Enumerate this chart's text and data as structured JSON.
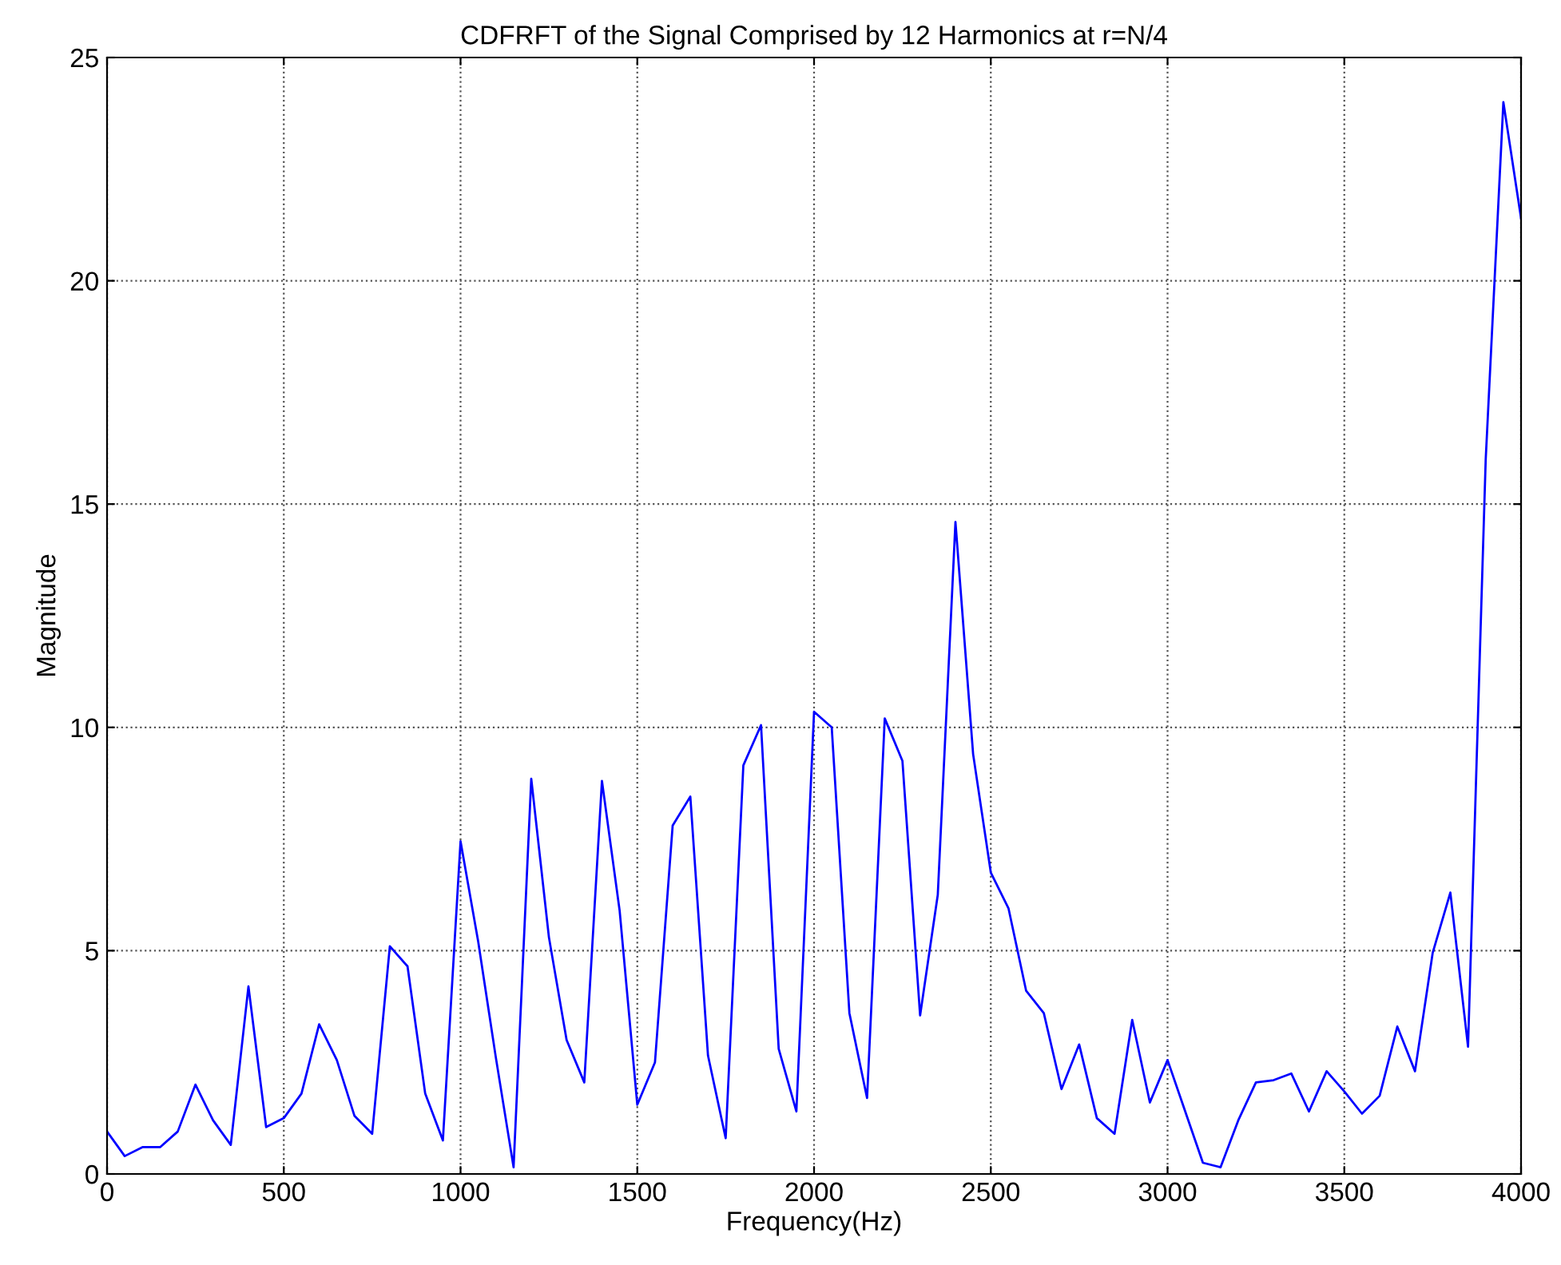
{
  "chart_data": {
    "type": "line",
    "title": "CDFRFT of the Signal Comprised by 12 Harmonics at r=N/4",
    "xlabel": "Frequency(Hz)",
    "ylabel": "Magnitude",
    "x": [
      0,
      50,
      100,
      150,
      200,
      250,
      300,
      350,
      400,
      450,
      500,
      550,
      600,
      650,
      700,
      750,
      800,
      850,
      900,
      950,
      1000,
      1050,
      1100,
      1150,
      1200,
      1250,
      1300,
      1350,
      1400,
      1450,
      1500,
      1550,
      1600,
      1650,
      1700,
      1750,
      1800,
      1850,
      1900,
      1950,
      2000,
      2050,
      2100,
      2150,
      2200,
      2250,
      2300,
      2350,
      2400,
      2450,
      2500,
      2550,
      2600,
      2650,
      2700,
      2750,
      2800,
      2850,
      2900,
      2950,
      3000,
      3050,
      3100,
      3150,
      3200,
      3250,
      3300,
      3350,
      3400,
      3450,
      3500,
      3550,
      3600,
      3650,
      3700,
      3750,
      3800,
      3850,
      3900,
      3950,
      4000
    ],
    "series": [
      {
        "color": "#0000ff",
        "values": [
          0.95,
          0.4,
          0.6,
          0.6,
          0.95,
          2.0,
          1.2,
          0.65,
          4.2,
          1.05,
          1.25,
          1.8,
          3.35,
          2.55,
          1.3,
          0.9,
          5.1,
          4.65,
          1.8,
          0.75,
          7.45,
          5.2,
          2.6,
          0.15,
          8.85,
          5.3,
          3.0,
          2.05,
          8.8,
          5.9,
          1.55,
          2.5,
          7.8,
          8.45,
          2.65,
          0.8,
          9.15,
          10.05,
          2.8,
          1.4,
          10.35,
          10.0,
          3.6,
          1.7,
          10.2,
          9.25,
          3.55,
          6.25,
          14.6,
          9.4,
          6.75,
          5.95,
          4.1,
          3.6,
          1.9,
          2.9,
          1.25,
          0.9,
          3.45,
          1.6,
          2.55,
          1.4,
          0.25,
          0.15,
          1.2,
          2.05,
          2.1,
          2.25,
          1.4,
          2.3,
          1.85,
          1.35,
          1.75,
          3.3,
          2.3,
          4.95,
          6.3,
          2.85,
          16.0,
          24.0,
          21.4
        ]
      }
    ],
    "xlim": [
      0,
      4000
    ],
    "xticks": [
      0,
      500,
      1000,
      1500,
      2000,
      2500,
      3000,
      3500,
      4000
    ],
    "ylim": [
      0,
      25
    ],
    "yticks": [
      0,
      5,
      10,
      15,
      20,
      25
    ],
    "grid": true,
    "line_style": "solid",
    "marker": "none"
  }
}
